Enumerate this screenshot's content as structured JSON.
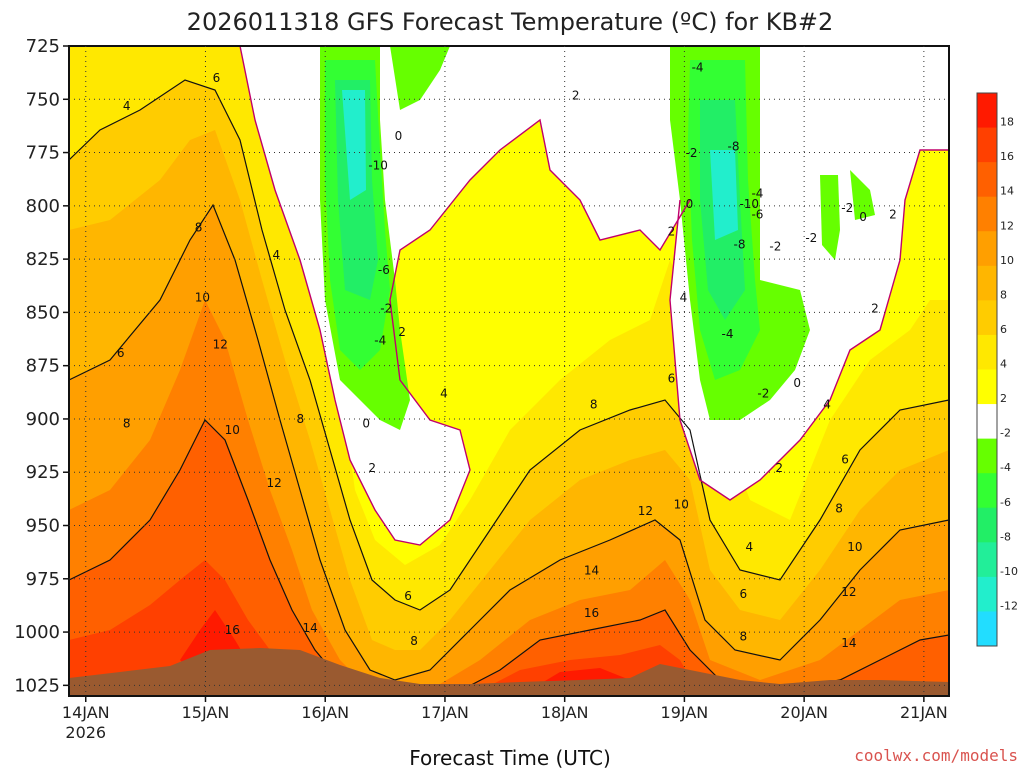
{
  "chart_data": {
    "type": "contour",
    "title": "2026011318 GFS Forecast Temperature (ºC) for KB#2",
    "xlabel": "Forecast Time (UTC)",
    "ylabel": "",
    "credit": "coolwx.com/models",
    "y_axis": {
      "ticks": [
        "725",
        "750",
        "775",
        "800",
        "825",
        "850",
        "875",
        "900",
        "925",
        "950",
        "975",
        "1000",
        "1025"
      ],
      "ylim": [
        725,
        1030
      ]
    },
    "x_axis": {
      "ticks": [
        "14JAN",
        "15JAN",
        "16JAN",
        "17JAN",
        "18JAN",
        "19JAN",
        "20JAN",
        "21JAN"
      ],
      "first_tick_sublabel": "2026",
      "xlim_days": [
        0,
        7.35
      ]
    },
    "colorbar": {
      "bands": [
        {
          "label": "18",
          "color": "#ff1a00"
        },
        {
          "label": "16",
          "color": "#ff4000"
        },
        {
          "label": "14",
          "color": "#ff6000"
        },
        {
          "label": "12",
          "color": "#ff8000"
        },
        {
          "label": "10",
          "color": "#ff9f00"
        },
        {
          "label": "8",
          "color": "#ffb600"
        },
        {
          "label": "6",
          "color": "#ffcc00"
        },
        {
          "label": "4",
          "color": "#ffe800"
        },
        {
          "label": "2",
          "color": "#ffff00"
        },
        {
          "label": "-2",
          "color": "#ffffff"
        },
        {
          "label": "-4",
          "color": "#66ff00"
        },
        {
          "label": "-6",
          "color": "#33ff33"
        },
        {
          "label": "-8",
          "color": "#22ee66"
        },
        {
          "label": "-10",
          "color": "#22ee99"
        },
        {
          "label": "-12",
          "color": "#22eecc"
        },
        {
          "label": "",
          "color": "#22ddff"
        }
      ]
    },
    "contour_labels": [
      {
        "text": "4",
        "t": 0.45,
        "p": 755
      },
      {
        "text": "6",
        "t": 1.2,
        "p": 742
      },
      {
        "text": "4",
        "t": 1.7,
        "p": 825
      },
      {
        "text": "8",
        "t": 1.05,
        "p": 812
      },
      {
        "text": "10",
        "t": 1.05,
        "p": 845
      },
      {
        "text": "12",
        "t": 1.2,
        "p": 867
      },
      {
        "text": "6",
        "t": 0.4,
        "p": 871
      },
      {
        "text": "8",
        "t": 0.45,
        "p": 904
      },
      {
        "text": "10",
        "t": 1.3,
        "p": 907
      },
      {
        "text": "12",
        "t": 1.65,
        "p": 932
      },
      {
        "text": "8",
        "t": 1.9,
        "p": 902
      },
      {
        "text": "16",
        "t": 1.3,
        "p": 1001
      },
      {
        "text": "14",
        "t": 1.95,
        "p": 1000
      },
      {
        "text": "0",
        "t": 2.72,
        "p": 769
      },
      {
        "text": "-10",
        "t": 2.5,
        "p": 783
      },
      {
        "text": "-6",
        "t": 2.58,
        "p": 832
      },
      {
        "text": "-2",
        "t": 2.6,
        "p": 850
      },
      {
        "text": "-4",
        "t": 2.55,
        "p": 865
      },
      {
        "text": "2",
        "t": 2.75,
        "p": 861
      },
      {
        "text": "0",
        "t": 2.45,
        "p": 904
      },
      {
        "text": "2",
        "t": 2.5,
        "p": 925
      },
      {
        "text": "4",
        "t": 3.1,
        "p": 890
      },
      {
        "text": "6",
        "t": 2.8,
        "p": 985
      },
      {
        "text": "8",
        "t": 2.85,
        "p": 1006
      },
      {
        "text": "2",
        "t": 4.2,
        "p": 750
      },
      {
        "text": "8",
        "t": 4.35,
        "p": 895
      },
      {
        "text": "12",
        "t": 4.75,
        "p": 945
      },
      {
        "text": "14",
        "t": 4.3,
        "p": 973
      },
      {
        "text": "16",
        "t": 4.3,
        "p": 993
      },
      {
        "text": "4",
        "t": 5.1,
        "p": 845
      },
      {
        "text": "6",
        "t": 5.0,
        "p": 883
      },
      {
        "text": "10",
        "t": 5.05,
        "p": 942
      },
      {
        "text": "-4",
        "t": 5.2,
        "p": 737
      },
      {
        "text": "-2",
        "t": 5.15,
        "p": 777
      },
      {
        "text": "-8",
        "t": 5.5,
        "p": 774
      },
      {
        "text": "-4",
        "t": 5.7,
        "p": 796
      },
      {
        "text": "0",
        "t": 5.15,
        "p": 801
      },
      {
        "text": "-10",
        "t": 5.6,
        "p": 801
      },
      {
        "text": "-6",
        "t": 5.7,
        "p": 806
      },
      {
        "text": "2",
        "t": 5.0,
        "p": 814
      },
      {
        "text": "-8",
        "t": 5.55,
        "p": 820
      },
      {
        "text": "-2",
        "t": 5.85,
        "p": 821
      },
      {
        "text": "-4",
        "t": 5.45,
        "p": 862
      },
      {
        "text": "-2",
        "t": 5.75,
        "p": 890
      },
      {
        "text": "0",
        "t": 6.05,
        "p": 885
      },
      {
        "text": "2",
        "t": 5.9,
        "p": 925
      },
      {
        "text": "4",
        "t": 5.65,
        "p": 962
      },
      {
        "text": "6",
        "t": 5.6,
        "p": 984
      },
      {
        "text": "8",
        "t": 5.6,
        "p": 1004
      },
      {
        "text": "-2",
        "t": 6.45,
        "p": 803
      },
      {
        "text": "-2",
        "t": 6.15,
        "p": 817
      },
      {
        "text": "0",
        "t": 6.6,
        "p": 807
      },
      {
        "text": "2",
        "t": 6.85,
        "p": 806
      },
      {
        "text": "2",
        "t": 6.7,
        "p": 850
      },
      {
        "text": "4",
        "t": 6.3,
        "p": 895
      },
      {
        "text": "6",
        "t": 6.45,
        "p": 921
      },
      {
        "text": "8",
        "t": 6.4,
        "p": 944
      },
      {
        "text": "10",
        "t": 6.5,
        "p": 962
      },
      {
        "text": "12",
        "t": 6.45,
        "p": 983
      },
      {
        "text": "14",
        "t": 6.45,
        "p": 1007
      }
    ]
  }
}
